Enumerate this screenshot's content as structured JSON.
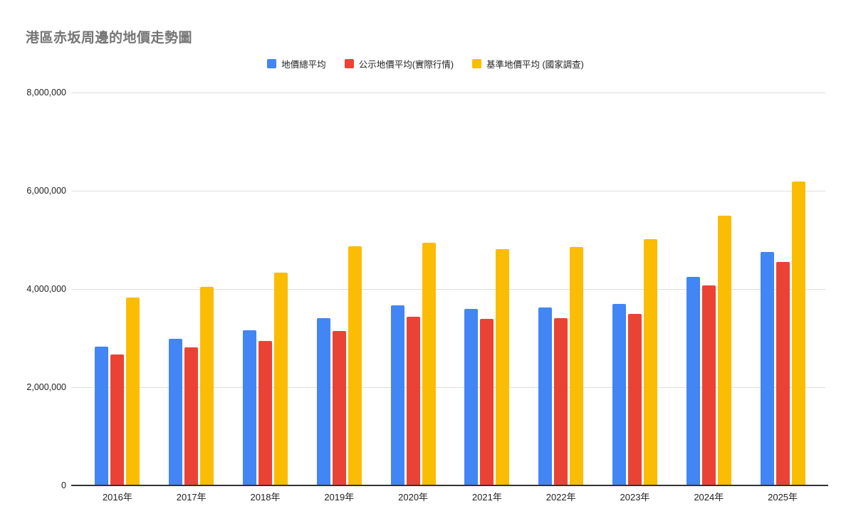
{
  "chart_data": {
    "type": "bar",
    "title": "港區赤坂周邊的地價走勢圖",
    "xlabel": "",
    "ylabel": "",
    "ylim": [
      0,
      8000000
    ],
    "grid": true,
    "legend_position": "top",
    "background": "#ffffff",
    "title_color": "#757575",
    "axis_text_color": "#222222",
    "gridline_color": "#dddddd",
    "baseline_color": "#333333",
    "categories": [
      "2016年",
      "2017年",
      "2018年",
      "2019年",
      "2020年",
      "2021年",
      "2022年",
      "2023年",
      "2024年",
      "2025年"
    ],
    "series": [
      {
        "name": "地價總平均",
        "color": "#4285F4",
        "values": [
          2820000,
          2980000,
          3160000,
          3400000,
          3670000,
          3590000,
          3620000,
          3700000,
          4240000,
          4760000
        ]
      },
      {
        "name": "公示地價平均(實際行情)",
        "color": "#EA4335",
        "values": [
          2670000,
          2810000,
          2940000,
          3150000,
          3440000,
          3390000,
          3400000,
          3490000,
          4070000,
          4550000
        ]
      },
      {
        "name": "基準地價平均 (國家調查)",
        "color": "#FBBC04",
        "values": [
          3830000,
          4040000,
          4340000,
          4870000,
          4940000,
          4810000,
          4860000,
          5020000,
          5490000,
          6190000
        ]
      }
    ],
    "y_ticks": [
      {
        "value": 0,
        "label": "0"
      },
      {
        "value": 2000000,
        "label": "2,000,000"
      },
      {
        "value": 4000000,
        "label": "4,000,000"
      },
      {
        "value": 6000000,
        "label": "6,000,000"
      },
      {
        "value": 8000000,
        "label": "8,000,000"
      }
    ]
  }
}
